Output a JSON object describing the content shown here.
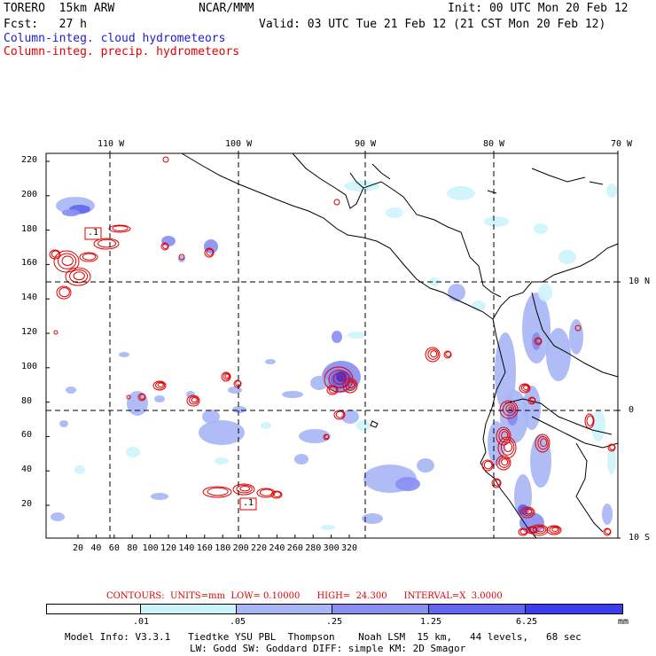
{
  "header": {
    "left_line1": "TORERO  15km ARW",
    "center_line1": "NCAR/MMM",
    "right_line1": "Init: 00 UTC Mon 20 Feb 12",
    "left_line2": "Fcst:   27 h",
    "right_line2": "Valid: 03 UTC Tue 21 Feb 12 (21 CST Mon 20 Feb 12)",
    "legend_cloud": "Column-integ. cloud hydrometeors",
    "legend_precip": "Column-integ. precip. hydrometeors"
  },
  "colors": {
    "cloud_text": "#2020d0",
    "precip_text": "#e00000",
    "shade_1": "#cdf4fb",
    "shade_2": "#a9b6f5",
    "shade_3": "#8a90f2",
    "shade_4": "#6466ef",
    "shade_5": "#3c3ded",
    "contour": "#e00000"
  },
  "top_longitude_labels": [
    "110 W",
    "100 W",
    "90 W",
    "80 W",
    "70 W"
  ],
  "right_latitude_labels": [
    "10 N",
    "0",
    "10 S"
  ],
  "left_y_ticks": [
    "220",
    "200",
    "180",
    "160",
    "140",
    "120",
    "100",
    "80",
    "60",
    "40",
    "20"
  ],
  "bottom_x_ticks": [
    "20",
    "40",
    "60",
    "80",
    "100",
    "120",
    "140",
    "160",
    "180",
    "200",
    "220",
    "240",
    "260",
    "280",
    "300",
    "320"
  ],
  "contour_labels": [
    ".1",
    ".1"
  ],
  "contour_info": "CONTOURS:  UNITS=mm  LOW= 0.10000      HIGH=  24.300      INTERVAL=X  3.0000",
  "colorbar": {
    "labels": [
      ".01",
      ".05",
      ".25",
      "1.25",
      "6.25"
    ],
    "unit": "mm"
  },
  "model_info_line1": "Model Info: V3.3.1   Tiedtke YSU PBL  Thompson    Noah LSM  15 km,   44 levels,   68 sec",
  "model_info_line2": "LW: Godd SW: Goddard DIFF: simple KM: 2D Smagor"
}
